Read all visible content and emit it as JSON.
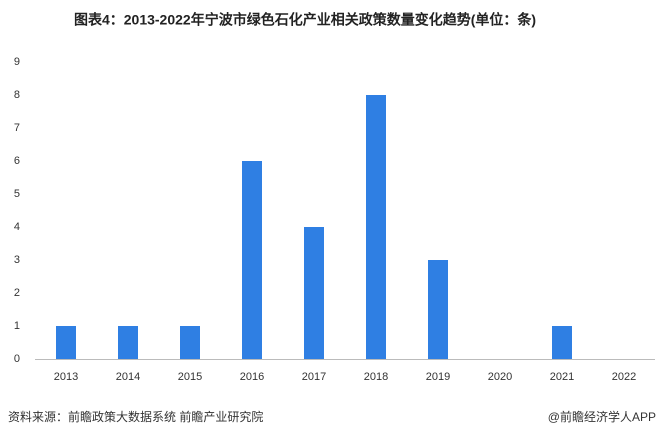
{
  "chart_data": {
    "type": "bar",
    "title": "图表4：2013-2022年宁波市绿色石化产业相关政策数量变化趋势(单位：条)",
    "categories": [
      "2013",
      "2014",
      "2015",
      "2016",
      "2017",
      "2018",
      "2019",
      "2020",
      "2021",
      "2022"
    ],
    "values": [
      1,
      1,
      1,
      6,
      4,
      8,
      3,
      0,
      1,
      0
    ],
    "color": "#2f7fe3",
    "ylim": [
      0,
      9
    ],
    "yticks": [
      0,
      1,
      2,
      3,
      4,
      5,
      6,
      7,
      8,
      9
    ],
    "grid": false,
    "source": "资料来源：前瞻政策大数据系统 前瞻产业研究院",
    "credit": "@前瞻经济学人APP"
  }
}
